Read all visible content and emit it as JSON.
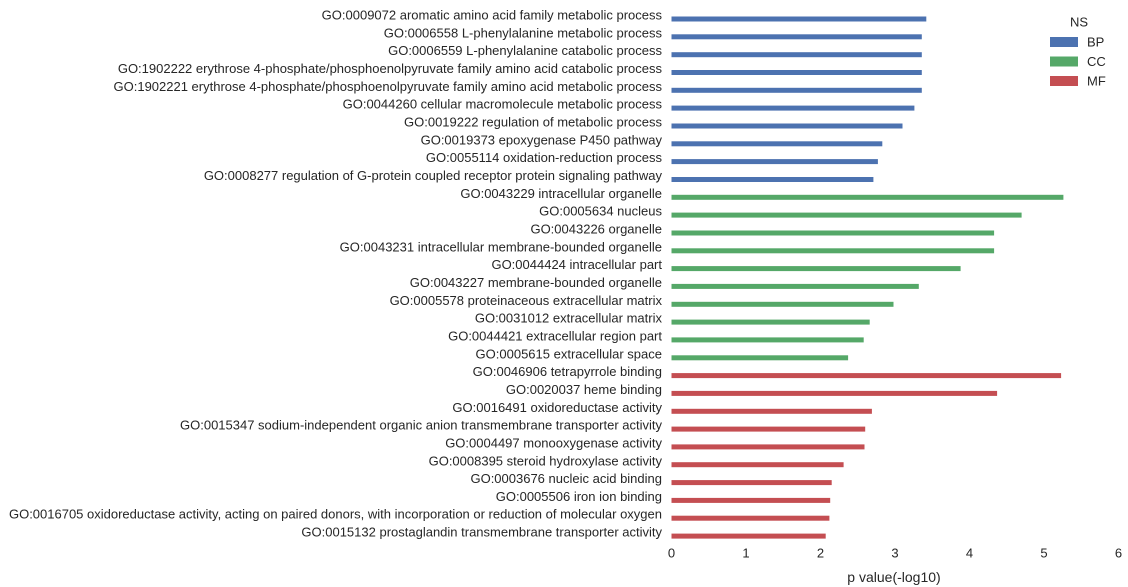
{
  "chart_data": {
    "type": "bar",
    "orientation": "horizontal",
    "xlabel": "p value(-log10)",
    "ylabel": "",
    "xlim": [
      0,
      6
    ],
    "xticks": [
      0,
      1,
      2,
      3,
      4,
      5,
      6
    ],
    "grid": false,
    "legend": {
      "title": "NS",
      "placement": "top-right",
      "entries": [
        {
          "name": "BP",
          "color": "#4c72b0"
        },
        {
          "name": "CC",
          "color": "#55a868"
        },
        {
          "name": "MF",
          "color": "#c44e52"
        }
      ]
    },
    "bars": [
      {
        "label": "GO:0009072 aromatic amino acid family metabolic process",
        "value": 3.42,
        "ns": "BP"
      },
      {
        "label": "GO:0006558 L-phenylalanine metabolic process",
        "value": 3.36,
        "ns": "BP"
      },
      {
        "label": "GO:0006559 L-phenylalanine catabolic process",
        "value": 3.36,
        "ns": "BP"
      },
      {
        "label": "GO:1902222 erythrose 4-phosphate/phosphoenolpyruvate family amino acid catabolic process",
        "value": 3.36,
        "ns": "BP"
      },
      {
        "label": "GO:1902221 erythrose 4-phosphate/phosphoenolpyruvate family amino acid metabolic process",
        "value": 3.36,
        "ns": "BP"
      },
      {
        "label": "GO:0044260 cellular macromolecule metabolic process",
        "value": 3.26,
        "ns": "BP"
      },
      {
        "label": "GO:0019222 regulation of metabolic process",
        "value": 3.1,
        "ns": "BP"
      },
      {
        "label": "GO:0019373 epoxygenase P450 pathway",
        "value": 2.83,
        "ns": "BP"
      },
      {
        "label": "GO:0055114 oxidation-reduction process",
        "value": 2.77,
        "ns": "BP"
      },
      {
        "label": "GO:0008277 regulation of G-protein coupled receptor protein signaling pathway",
        "value": 2.71,
        "ns": "BP"
      },
      {
        "label": "GO:0043229 intracellular organelle",
        "value": 5.26,
        "ns": "CC"
      },
      {
        "label": "GO:0005634 nucleus",
        "value": 4.7,
        "ns": "CC"
      },
      {
        "label": "GO:0043226 organelle",
        "value": 4.33,
        "ns": "CC"
      },
      {
        "label": "GO:0043231 intracellular membrane-bounded organelle",
        "value": 4.33,
        "ns": "CC"
      },
      {
        "label": "GO:0044424 intracellular part",
        "value": 3.88,
        "ns": "CC"
      },
      {
        "label": "GO:0043227 membrane-bounded organelle",
        "value": 3.32,
        "ns": "CC"
      },
      {
        "label": "GO:0005578 proteinaceous extracellular matrix",
        "value": 2.98,
        "ns": "CC"
      },
      {
        "label": "GO:0031012 extracellular matrix",
        "value": 2.66,
        "ns": "CC"
      },
      {
        "label": "GO:0044421 extracellular region part",
        "value": 2.58,
        "ns": "CC"
      },
      {
        "label": "GO:0005615 extracellular space",
        "value": 2.37,
        "ns": "CC"
      },
      {
        "label": "GO:0046906 tetrapyrrole binding",
        "value": 5.23,
        "ns": "MF"
      },
      {
        "label": "GO:0020037 heme binding",
        "value": 4.37,
        "ns": "MF"
      },
      {
        "label": "GO:0016491 oxidoreductase activity",
        "value": 2.69,
        "ns": "MF"
      },
      {
        "label": "GO:0015347 sodium-independent organic anion transmembrane transporter activity",
        "value": 2.6,
        "ns": "MF"
      },
      {
        "label": "GO:0004497 monooxygenase activity",
        "value": 2.59,
        "ns": "MF"
      },
      {
        "label": "GO:0008395 steroid hydroxylase activity",
        "value": 2.31,
        "ns": "MF"
      },
      {
        "label": "GO:0003676 nucleic acid binding",
        "value": 2.15,
        "ns": "MF"
      },
      {
        "label": "GO:0005506 iron ion binding",
        "value": 2.13,
        "ns": "MF"
      },
      {
        "label": "GO:0016705 oxidoreductase activity, acting on paired donors, with incorporation or reduction of molecular oxygen",
        "value": 2.12,
        "ns": "MF"
      },
      {
        "label": "GO:0015132 prostaglandin transmembrane transporter activity",
        "value": 2.07,
        "ns": "MF"
      }
    ]
  }
}
